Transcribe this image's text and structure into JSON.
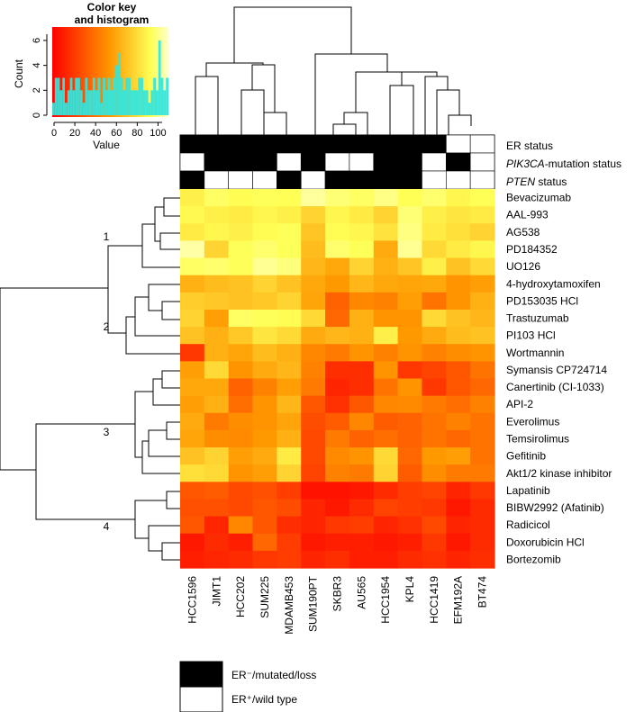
{
  "chart_data": {
    "type": "heatmap",
    "color_key": {
      "title_line1": "Color key",
      "title_line2": "and histogram",
      "xlabel": "Value",
      "ylabel": "Count",
      "xticks": [
        "0",
        "20",
        "40",
        "60",
        "80",
        "100"
      ],
      "yticks": [
        "0",
        "2",
        "4",
        "6"
      ],
      "xlim": [
        0,
        110
      ],
      "ylim": [
        0,
        6.5
      ],
      "histogram_counts": [
        1,
        3,
        3,
        2,
        3,
        1,
        2,
        3,
        2,
        3,
        3,
        2,
        1,
        3,
        2,
        2,
        3,
        2,
        3,
        1,
        3,
        2,
        3,
        2,
        3,
        4,
        5,
        3,
        2,
        3,
        3,
        2,
        2,
        2,
        3,
        3,
        2,
        2,
        1,
        2,
        3,
        2,
        6,
        3,
        2,
        3
      ]
    },
    "columns": [
      "HCC1596",
      "JIMT1",
      "HCC202",
      "SUM225",
      "MDAMB453",
      "SUM190PT",
      "SKBR3",
      "AU565",
      "HCC1954",
      "KPL4",
      "HCC1419",
      "EFM192A",
      "BT474"
    ],
    "rows": [
      "Bevacizumab",
      "AAL-993",
      "AG538",
      "PD184352",
      "UO126",
      "4-hydroxytamoxifen",
      "PD153035 HCl",
      "Trastuzumab",
      "PI103 HCl",
      "Wortmannin",
      "Symansis CP724714",
      "Canertinib (CI-1033)",
      "API-2",
      "Everolimus",
      "Temsirolimus",
      "Gefitinib",
      "Akt1/2 kinase inhibitor",
      "Lapatinib",
      "BIBW2992 (Afatinib)",
      "Radicicol",
      "Doxorubicin HCl",
      "Bortezomib"
    ],
    "row_clusters": [
      "1",
      "2",
      "3",
      "4"
    ],
    "annotation_rows": [
      {
        "label_prefix": "",
        "label_italic": "",
        "label_suffix": "ER status",
        "values": [
          1,
          1,
          1,
          1,
          1,
          1,
          1,
          1,
          1,
          1,
          1,
          0,
          0
        ]
      },
      {
        "label_prefix": "",
        "label_italic": "PIK3CA",
        "label_suffix": "-mutation status",
        "values": [
          0,
          1,
          1,
          1,
          0,
          1,
          0,
          0,
          1,
          1,
          0,
          1,
          0
        ]
      },
      {
        "label_prefix": "",
        "label_italic": "PTEN",
        "label_suffix": " status",
        "values": [
          1,
          0,
          0,
          0,
          1,
          0,
          1,
          1,
          1,
          1,
          0,
          0,
          0
        ]
      }
    ],
    "legend": [
      {
        "color": "#000000",
        "label": "ER⁻/mutated/loss"
      },
      {
        "color": "#ffffff",
        "label": "ER⁺/wild type"
      }
    ],
    "values": [
      [
        80,
        88,
        84,
        86,
        85,
        100,
        92,
        88,
        95,
        85,
        90,
        82,
        85
      ],
      [
        83,
        80,
        78,
        82,
        80,
        70,
        82,
        78,
        70,
        92,
        80,
        76,
        78
      ],
      [
        78,
        82,
        80,
        84,
        86,
        65,
        84,
        82,
        75,
        94,
        78,
        74,
        70
      ],
      [
        102,
        70,
        86,
        90,
        86,
        62,
        90,
        86,
        56,
        98,
        72,
        78,
        82
      ],
      [
        88,
        90,
        86,
        98,
        93,
        60,
        55,
        70,
        58,
        65,
        80,
        64,
        72
      ],
      [
        58,
        62,
        64,
        70,
        64,
        55,
        50,
        60,
        55,
        54,
        55,
        48,
        52
      ],
      [
        68,
        66,
        64,
        66,
        70,
        54,
        32,
        44,
        42,
        52,
        38,
        48,
        58
      ],
      [
        70,
        52,
        88,
        86,
        84,
        72,
        34,
        58,
        48,
        48,
        72,
        64,
        60
      ],
      [
        64,
        58,
        66,
        76,
        72,
        56,
        60,
        58,
        80,
        50,
        56,
        62,
        64
      ],
      [
        18,
        58,
        54,
        62,
        58,
        44,
        40,
        48,
        42,
        48,
        42,
        46,
        48
      ],
      [
        52,
        72,
        48,
        56,
        60,
        42,
        15,
        15,
        48,
        18,
        22,
        28,
        38
      ],
      [
        55,
        55,
        32,
        42,
        52,
        40,
        12,
        15,
        38,
        48,
        18,
        28,
        34
      ],
      [
        52,
        58,
        36,
        48,
        60,
        28,
        16,
        28,
        44,
        45,
        40,
        36,
        42
      ],
      [
        56,
        40,
        46,
        48,
        54,
        25,
        30,
        44,
        30,
        32,
        38,
        42,
        38
      ],
      [
        54,
        46,
        45,
        50,
        58,
        24,
        40,
        32,
        36,
        32,
        38,
        34,
        38
      ],
      [
        64,
        70,
        52,
        56,
        78,
        24,
        45,
        48,
        72,
        34,
        50,
        52,
        38
      ],
      [
        74,
        72,
        48,
        52,
        70,
        22,
        42,
        40,
        70,
        30,
        46,
        40,
        40
      ],
      [
        28,
        30,
        24,
        26,
        20,
        6,
        6,
        8,
        14,
        20,
        22,
        12,
        18
      ],
      [
        26,
        26,
        24,
        28,
        25,
        12,
        8,
        14,
        22,
        20,
        18,
        8,
        14
      ],
      [
        28,
        12,
        44,
        28,
        15,
        12,
        18,
        20,
        12,
        16,
        24,
        12,
        14
      ],
      [
        8,
        14,
        10,
        34,
        20,
        8,
        10,
        10,
        8,
        10,
        18,
        8,
        14
      ],
      [
        10,
        12,
        14,
        18,
        20,
        12,
        15,
        10,
        10,
        14,
        16,
        12,
        15
      ]
    ]
  }
}
